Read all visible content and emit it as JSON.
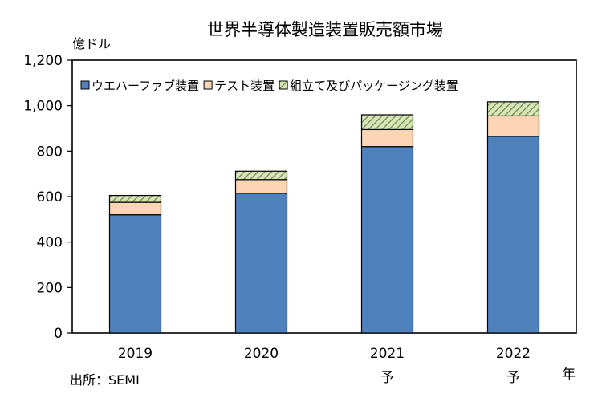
{
  "chart_data": {
    "type": "bar",
    "stacked": true,
    "title": "世界半導体製造装置販売額市場",
    "ylabel": "億ドル",
    "xlabel": "年",
    "source": "出所：SEMI",
    "ylim": [
      0,
      1200
    ],
    "yticks": [
      "0",
      "200",
      "400",
      "600",
      "800",
      "1,000",
      "1,200"
    ],
    "categories": [
      {
        "year": "2019",
        "note": ""
      },
      {
        "year": "2020",
        "note": ""
      },
      {
        "year": "2021",
        "note": "予"
      },
      {
        "year": "2022",
        "note": "予"
      }
    ],
    "series": [
      {
        "name": "ウエハーファブ装置",
        "color": "#4f81bd",
        "pattern": "solid",
        "values": [
          520,
          615,
          820,
          865
        ]
      },
      {
        "name": "テスト装置",
        "color": "#fcd5b5",
        "pattern": "solid",
        "values": [
          55,
          60,
          75,
          90
        ]
      },
      {
        "name": "組立て及びパッケージング装置",
        "color": "#c4d79b",
        "pattern": "hatch",
        "values": [
          30,
          37,
          65,
          62
        ]
      }
    ],
    "legend_position": "top-left inside plot",
    "grid": false
  }
}
